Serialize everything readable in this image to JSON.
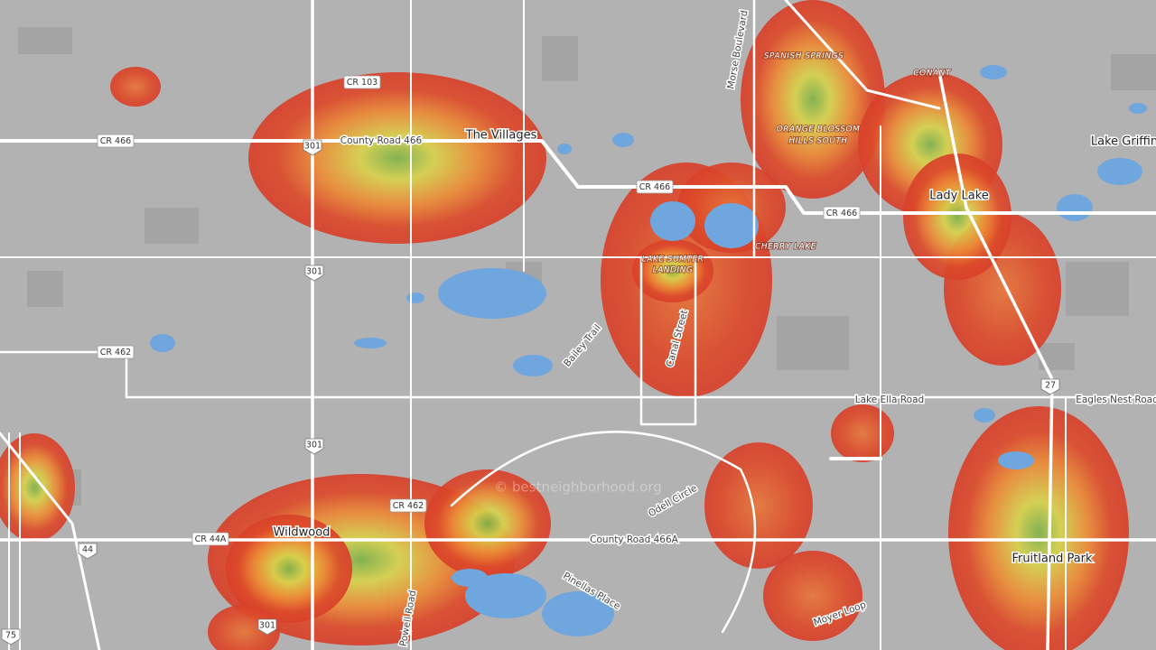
{
  "place_names": [
    "The Villages",
    "Lady Lake",
    "Wildwood",
    "Fruitland Park",
    "Lake Griffin"
  ],
  "district_names": [
    "SPANISH SPRINGS",
    "CONANT",
    "ORANGE BLOSSOM",
    "HILLS SOUTH",
    "CHERRY LAKE",
    "LAKE SUMTER",
    "LANDING"
  ],
  "road_names": [
    "County Road 466",
    "Lake Ella Road",
    "Eagles Nest Road",
    "County Road 466A",
    "Bailey Trail",
    "Canal Street",
    "Morse Boulevard",
    "Odell Circle",
    "Pinellas Place",
    "Powell Road",
    "Moyer Loop"
  ],
  "road_shields": [
    "CR 103",
    "CR 466",
    "CR 466",
    "CR 466",
    "CR 462",
    "CR 462",
    "CR 44A"
  ],
  "highway_shields": [
    "301",
    "301",
    "301",
    "301",
    "27",
    "44",
    "75"
  ],
  "watermark": "© bestneighborhood.org"
}
